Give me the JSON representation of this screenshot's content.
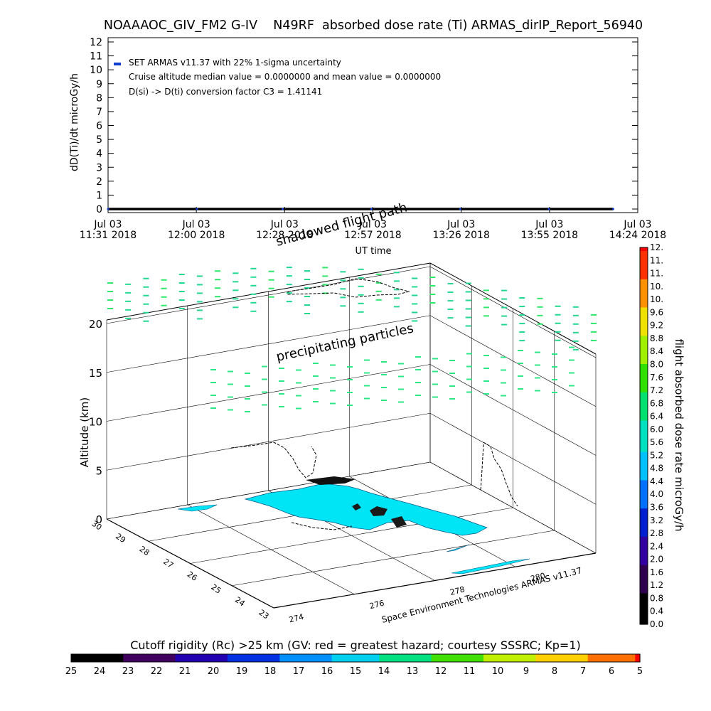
{
  "title": "NOAAAOC_GIV_FM2 G-IV    N49RF  absorbed dose rate (Ti) ARMAS_dirIP_Report_56940",
  "chart_data": [
    {
      "type": "line",
      "ylabel": "dD(Ti)/dt microGy/h",
      "xlabel": "UT time",
      "ylim": [
        0,
        12
      ],
      "yticks": [
        "0",
        "1",
        "2",
        "3",
        "4",
        "5",
        "6",
        "7",
        "8",
        "9",
        "10",
        "11",
        "12"
      ],
      "xticks": [
        {
          "top": "Jul 03",
          "bottom": "11:31 2018"
        },
        {
          "top": "Jul 03",
          "bottom": "12:00 2018"
        },
        {
          "top": "Jul 03",
          "bottom": "12:28 2018"
        },
        {
          "top": "Jul 03",
          "bottom": "12:57 2018"
        },
        {
          "top": "Jul 03",
          "bottom": "13:26 2018"
        },
        {
          "top": "Jul 03",
          "bottom": "13:55 2018"
        },
        {
          "top": "Jul 03",
          "bottom": "14:24 2018"
        }
      ],
      "series": [
        {
          "name": "SET ARMAS v11.37 with 22% 1-sigma uncertainty",
          "color": "#1040d0",
          "x": [
            "11:31",
            "12:00",
            "12:28",
            "12:57",
            "13:26",
            "13:55",
            "14:16"
          ],
          "values": [
            0,
            0,
            0,
            0,
            0,
            0,
            0
          ]
        }
      ],
      "annotations": [
        "Cruise altitude median value = 0.0000000 and mean value = 0.0000000",
        "D(si) -> D(ti) conversion factor C3 = 1.41141"
      ],
      "grid": false,
      "legend": "top-left"
    },
    {
      "type": "scatter",
      "subtype": "3d-trajectory",
      "zlabel": "Altitude (km)",
      "zticks": [
        "0",
        "5",
        "10",
        "15",
        "20"
      ],
      "lat_ticks": [
        "30",
        "29",
        "28",
        "27",
        "26",
        "25",
        "24",
        "23"
      ],
      "lon_ticks": [
        "274",
        "276",
        "278",
        "280"
      ],
      "labels": {
        "upper": "precipitating particles",
        "shadow": "shadowed flight path"
      },
      "credit": "Space Environment Technologies ARMAS v11.37",
      "colorbar": {
        "label": "flight absorbed dose rate microGy/h",
        "ticks": [
          "0.0",
          "0.4",
          "0.8",
          "1.2",
          "1.6",
          "2.0",
          "2.4",
          "2.8",
          "3.2",
          "3.6",
          "4.0",
          "4.4",
          "4.8",
          "5.2",
          "5.6",
          "6.0",
          "6.4",
          "6.8",
          "7.2",
          "7.6",
          "8.0",
          "8.4",
          "8.8",
          "9.2",
          "9.6",
          "10.",
          "10.",
          "11.",
          "11.",
          "12."
        ]
      },
      "bottom_colorbar": {
        "label": "Cutoff rigidity (Rc) >25 km (GV: red = greatest hazard; courtesy SSSRC; Kp=1)",
        "ticks": [
          "25",
          "24",
          "23",
          "22",
          "21",
          "20",
          "19",
          "18",
          "17",
          "16",
          "15",
          "14",
          "13",
          "12",
          "11",
          "10",
          "9",
          "8",
          "7",
          "6",
          "5"
        ]
      }
    }
  ]
}
